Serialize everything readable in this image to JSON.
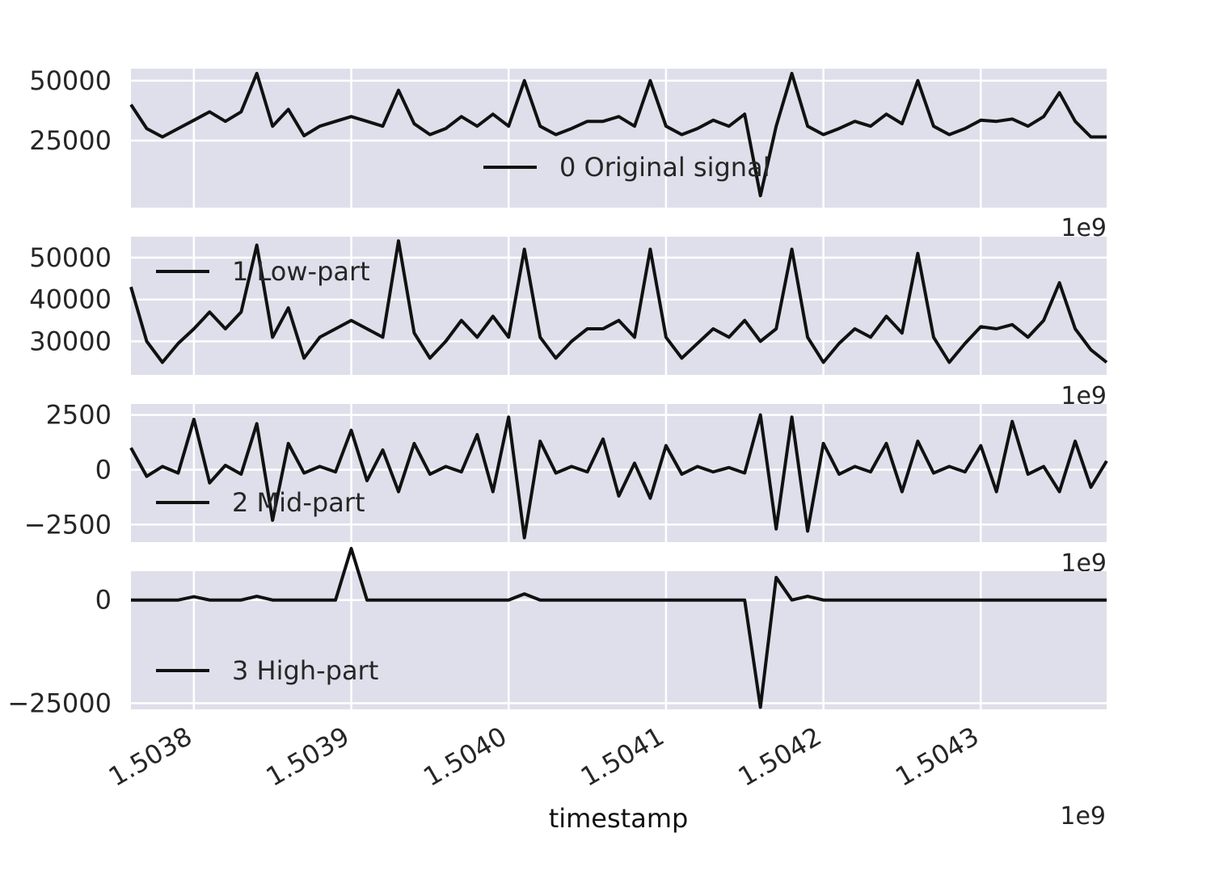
{
  "chart_data": [
    {
      "type": "line",
      "series": [
        {
          "name": "0 Original signal"
        }
      ],
      "xlim": [
        1.50376,
        1.50438
      ],
      "ylim": [
        -3000,
        55000
      ],
      "yticks": [
        25000,
        50000
      ],
      "ytick_labels": [
        "25000",
        "50000"
      ],
      "x_offset_label": "1e9",
      "legend_position": "lower-center",
      "grid": true,
      "x": [
        1.50376,
        1.50377,
        1.50378,
        1.50379,
        1.5038,
        1.50381,
        1.50382,
        1.50383,
        1.50384,
        1.50385,
        1.50386,
        1.50387,
        1.50388,
        1.50389,
        1.5039,
        1.50391,
        1.50392,
        1.50393,
        1.50394,
        1.50395,
        1.50396,
        1.50397,
        1.50398,
        1.50399,
        1.504,
        1.50401,
        1.50402,
        1.50403,
        1.50404,
        1.50405,
        1.50406,
        1.50407,
        1.50408,
        1.50409,
        1.5041,
        1.50411,
        1.50412,
        1.50413,
        1.50414,
        1.50415,
        1.50416,
        1.50417,
        1.50418,
        1.50419,
        1.5042,
        1.50421,
        1.50422,
        1.50423,
        1.50424,
        1.50425,
        1.50426,
        1.50427,
        1.50428,
        1.50429,
        1.5043,
        1.50431,
        1.50432,
        1.50433,
        1.50434,
        1.50435,
        1.50436,
        1.50437,
        1.50438
      ],
      "values": [
        40000,
        30000,
        26500,
        30000,
        33500,
        37000,
        33000,
        37000,
        53000,
        31000,
        38000,
        27000,
        31000,
        33000,
        35000,
        33000,
        31000,
        46000,
        32000,
        27500,
        30000,
        35000,
        31000,
        36000,
        31000,
        50000,
        31000,
        27500,
        30000,
        33000,
        33000,
        35000,
        31000,
        50000,
        31000,
        27500,
        30000,
        33500,
        31000,
        36000,
        2000,
        31000,
        53000,
        31000,
        27500,
        30000,
        33000,
        31000,
        36000,
        32000,
        50000,
        31000,
        27500,
        30000,
        33500,
        33000,
        34000,
        31000,
        35000,
        45000,
        33000,
        26500,
        26500
      ]
    },
    {
      "type": "line",
      "series": [
        {
          "name": "1 Low-part"
        }
      ],
      "xlim": [
        1.50376,
        1.50438
      ],
      "ylim": [
        22000,
        55000
      ],
      "yticks": [
        30000,
        40000,
        50000
      ],
      "ytick_labels": [
        "30000",
        "40000",
        "50000"
      ],
      "x_offset_label": "1e9",
      "legend_position": "upper-left",
      "grid": true,
      "x": [
        1.50376,
        1.50377,
        1.50378,
        1.50379,
        1.5038,
        1.50381,
        1.50382,
        1.50383,
        1.50384,
        1.50385,
        1.50386,
        1.50387,
        1.50388,
        1.50389,
        1.5039,
        1.50391,
        1.50392,
        1.50393,
        1.50394,
        1.50395,
        1.50396,
        1.50397,
        1.50398,
        1.50399,
        1.504,
        1.50401,
        1.50402,
        1.50403,
        1.50404,
        1.50405,
        1.50406,
        1.50407,
        1.50408,
        1.50409,
        1.5041,
        1.50411,
        1.50412,
        1.50413,
        1.50414,
        1.50415,
        1.50416,
        1.50417,
        1.50418,
        1.50419,
        1.5042,
        1.50421,
        1.50422,
        1.50423,
        1.50424,
        1.50425,
        1.50426,
        1.50427,
        1.50428,
        1.50429,
        1.5043,
        1.50431,
        1.50432,
        1.50433,
        1.50434,
        1.50435,
        1.50436,
        1.50437,
        1.50438
      ],
      "values": [
        43000,
        30000,
        25000,
        29500,
        33000,
        37000,
        33000,
        37000,
        53000,
        31000,
        38000,
        26000,
        31000,
        33000,
        35000,
        33000,
        31000,
        54000,
        32000,
        26000,
        30000,
        35000,
        31000,
        36000,
        31000,
        52000,
        31000,
        26000,
        30000,
        33000,
        33000,
        35000,
        31000,
        52000,
        31000,
        26000,
        29500,
        33000,
        31000,
        35000,
        30000,
        33000,
        52000,
        31000,
        25000,
        29500,
        33000,
        31000,
        36000,
        32000,
        51000,
        31000,
        25000,
        29500,
        33500,
        33000,
        34000,
        31000,
        35000,
        44000,
        33000,
        28000,
        25000
      ]
    },
    {
      "type": "line",
      "series": [
        {
          "name": "2 Mid-part"
        }
      ],
      "xlim": [
        1.50376,
        1.50438
      ],
      "ylim": [
        -3300,
        3000
      ],
      "yticks": [
        -2500,
        0,
        2500
      ],
      "ytick_labels": [
        "−2500",
        "0",
        "2500"
      ],
      "x_offset_label": "1e9",
      "legend_position": "lower-left",
      "grid": true,
      "x": [
        1.50376,
        1.50377,
        1.50378,
        1.50379,
        1.5038,
        1.50381,
        1.50382,
        1.50383,
        1.50384,
        1.50385,
        1.50386,
        1.50387,
        1.50388,
        1.50389,
        1.5039,
        1.50391,
        1.50392,
        1.50393,
        1.50394,
        1.50395,
        1.50396,
        1.50397,
        1.50398,
        1.50399,
        1.504,
        1.50401,
        1.50402,
        1.50403,
        1.50404,
        1.50405,
        1.50406,
        1.50407,
        1.50408,
        1.50409,
        1.5041,
        1.50411,
        1.50412,
        1.50413,
        1.50414,
        1.50415,
        1.50416,
        1.50417,
        1.50418,
        1.50419,
        1.5042,
        1.50421,
        1.50422,
        1.50423,
        1.50424,
        1.50425,
        1.50426,
        1.50427,
        1.50428,
        1.50429,
        1.5043,
        1.50431,
        1.50432,
        1.50433,
        1.50434,
        1.50435,
        1.50436,
        1.50437,
        1.50438
      ],
      "values": [
        1000,
        -300,
        150,
        -150,
        2300,
        -600,
        200,
        -200,
        2100,
        -2300,
        1200,
        -150,
        150,
        -100,
        1800,
        -500,
        900,
        -1000,
        1200,
        -200,
        150,
        -100,
        1600,
        -1000,
        2400,
        -3100,
        1300,
        -150,
        150,
        -100,
        1400,
        -1200,
        300,
        -1300,
        1100,
        -200,
        150,
        -100,
        100,
        -150,
        2500,
        -2700,
        2400,
        -2800,
        1200,
        -200,
        150,
        -100,
        1200,
        -1000,
        1300,
        -150,
        150,
        -100,
        1100,
        -1000,
        2200,
        -200,
        150,
        -1000,
        1300,
        -800,
        400
      ]
    },
    {
      "type": "line",
      "series": [
        {
          "name": "3 High-part"
        }
      ],
      "xlim": [
        1.50376,
        1.50438
      ],
      "ylim": [
        -26500,
        7000
      ],
      "yticks": [
        -25000,
        0
      ],
      "ytick_labels": [
        "−25000",
        "0"
      ],
      "x_offset_label": "1e9",
      "legend_position": "lower-left",
      "grid": true,
      "x": [
        1.50376,
        1.50377,
        1.50378,
        1.50379,
        1.5038,
        1.50381,
        1.50382,
        1.50383,
        1.50384,
        1.50385,
        1.50386,
        1.50387,
        1.50388,
        1.50389,
        1.5039,
        1.50391,
        1.50392,
        1.50393,
        1.50394,
        1.50395,
        1.50396,
        1.50397,
        1.50398,
        1.50399,
        1.504,
        1.50401,
        1.50402,
        1.50403,
        1.50404,
        1.50405,
        1.50406,
        1.50407,
        1.50408,
        1.50409,
        1.5041,
        1.50411,
        1.50412,
        1.50413,
        1.50414,
        1.50415,
        1.50416,
        1.50417,
        1.50418,
        1.50419,
        1.5042,
        1.50421,
        1.50422,
        1.50423,
        1.50424,
        1.50425,
        1.50426,
        1.50427,
        1.50428,
        1.50429,
        1.5043,
        1.50431,
        1.50432,
        1.50433,
        1.50434,
        1.50435,
        1.50436,
        1.50437,
        1.50438
      ],
      "values": [
        0,
        0,
        0,
        0,
        800,
        0,
        0,
        0,
        900,
        0,
        0,
        0,
        0,
        0,
        12500,
        0,
        0,
        0,
        0,
        0,
        0,
        0,
        0,
        0,
        0,
        1500,
        0,
        0,
        0,
        0,
        0,
        0,
        0,
        0,
        0,
        0,
        0,
        0,
        0,
        0,
        -26000,
        5500,
        0,
        900,
        0,
        0,
        0,
        0,
        0,
        0,
        0,
        0,
        0,
        0,
        0,
        0,
        0,
        0,
        0,
        0,
        0,
        0,
        0
      ]
    }
  ],
  "x_axis": {
    "label": "timestamp",
    "ticks": [
      1.5038,
      1.5039,
      1.504,
      1.5041,
      1.5042,
      1.5043
    ],
    "tick_labels": [
      "1.5038",
      "1.5039",
      "1.5040",
      "1.5041",
      "1.5042",
      "1.5043"
    ],
    "offset_label": "1e9"
  },
  "colors": {
    "plot_background": "#dfdfeb",
    "grid": "#ffffff",
    "line": "#111111"
  }
}
